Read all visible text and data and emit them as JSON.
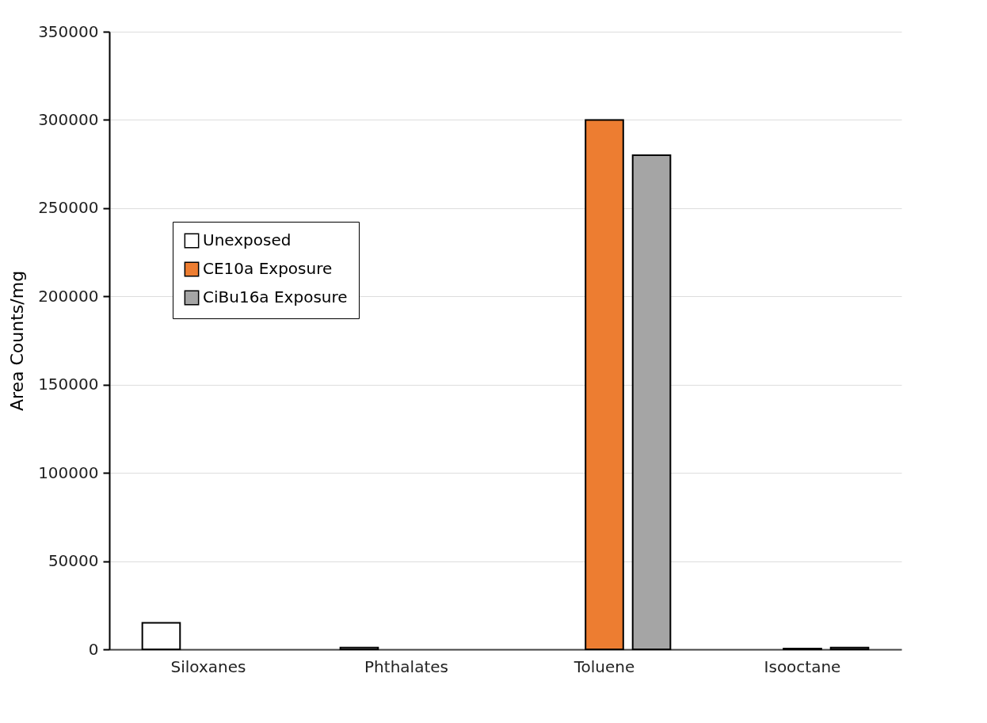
{
  "chart_data": {
    "type": "bar",
    "ylabel": "Area Counts/mg",
    "categories": [
      "Siloxanes",
      "Phthalates",
      "Toluene",
      "Isooctane"
    ],
    "series": [
      {
        "name": "Unexposed",
        "color": "#ffffff",
        "values": [
          15000,
          1000,
          null,
          null
        ]
      },
      {
        "name": "CE10a Exposure",
        "color": "#ed7d31",
        "values": [
          null,
          null,
          300000,
          500
        ]
      },
      {
        "name": "CiBu16a Exposure",
        "color": "#a5a5a5",
        "values": [
          null,
          null,
          280000,
          1000
        ]
      }
    ],
    "ylim": [
      0,
      350000
    ],
    "yticks": [
      0,
      50000,
      100000,
      150000,
      200000,
      250000,
      300000,
      350000
    ],
    "grid": "y",
    "legend": "top left"
  }
}
